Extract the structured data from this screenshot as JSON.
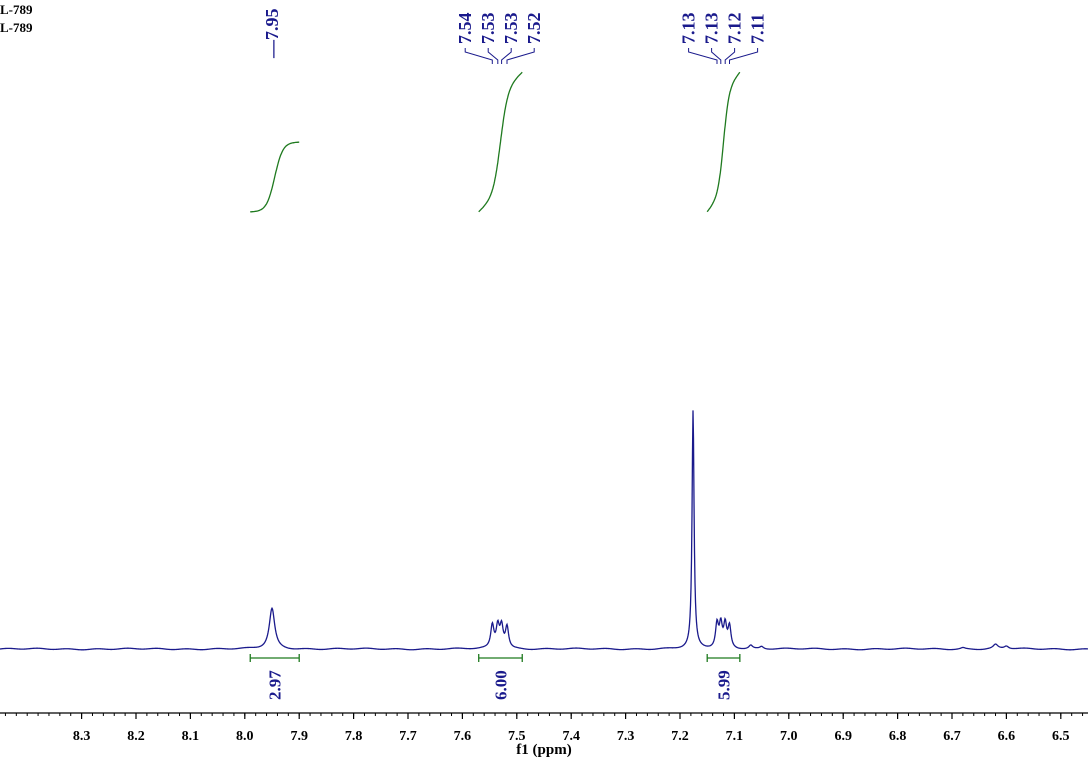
{
  "header": {
    "sample_lines": [
      "L-789",
      "L-789"
    ]
  },
  "colors": {
    "spectrum": "#1a1a8c",
    "integral": "#1f7a1f",
    "peak_label": "#1a1a8c",
    "axis": "#000000",
    "background": "#ffffff"
  },
  "chart_data": {
    "type": "line",
    "title": "",
    "xlabel": "f1 (ppm)",
    "ylabel": "",
    "xlim": [
      8.45,
      6.45
    ],
    "x_reversed": true,
    "x_ticks": [
      "8.3",
      "8.2",
      "8.1",
      "8.0",
      "7.9",
      "7.8",
      "7.7",
      "7.6",
      "7.5",
      "7.4",
      "7.3",
      "7.2",
      "7.1",
      "7.0",
      "6.9",
      "6.8",
      "6.7",
      "6.6",
      "6.5"
    ],
    "grid": false,
    "peak_groups": [
      {
        "labels": [
          "7.95"
        ],
        "shifts": [
          7.95
        ]
      },
      {
        "labels": [
          "7.54",
          "7.53",
          "7.53",
          "7.52"
        ],
        "shifts": [
          7.545,
          7.535,
          7.528,
          7.518
        ]
      },
      {
        "labels": [
          "7.13",
          "7.13",
          "7.12",
          "7.11"
        ],
        "shifts": [
          7.132,
          7.125,
          7.117,
          7.109
        ]
      }
    ],
    "integrals": [
      {
        "value": "2.97",
        "from": 7.99,
        "to": 7.9
      },
      {
        "value": "6.00",
        "from": 7.57,
        "to": 7.49
      },
      {
        "value": "5.99",
        "from": 7.15,
        "to": 7.09
      }
    ],
    "peaks": [
      {
        "shift": 7.95,
        "height": 0.17,
        "width": 0.006
      },
      {
        "shift": 7.545,
        "height": 0.095,
        "width": 0.0035
      },
      {
        "shift": 7.535,
        "height": 0.09,
        "width": 0.0035
      },
      {
        "shift": 7.528,
        "height": 0.09,
        "width": 0.0035
      },
      {
        "shift": 7.518,
        "height": 0.09,
        "width": 0.0035
      },
      {
        "shift": 7.176,
        "height": 1.0,
        "width": 0.0022
      },
      {
        "shift": 7.132,
        "height": 0.1,
        "width": 0.0032
      },
      {
        "shift": 7.125,
        "height": 0.095,
        "width": 0.0032
      },
      {
        "shift": 7.117,
        "height": 0.095,
        "width": 0.0032
      },
      {
        "shift": 7.109,
        "height": 0.09,
        "width": 0.0032
      },
      {
        "shift": 7.07,
        "height": 0.015,
        "width": 0.004
      },
      {
        "shift": 7.05,
        "height": 0.01,
        "width": 0.004
      },
      {
        "shift": 6.62,
        "height": 0.018,
        "width": 0.005
      },
      {
        "shift": 6.6,
        "height": 0.012,
        "width": 0.005
      },
      {
        "shift": 6.68,
        "height": 0.006,
        "width": 0.005
      }
    ]
  }
}
